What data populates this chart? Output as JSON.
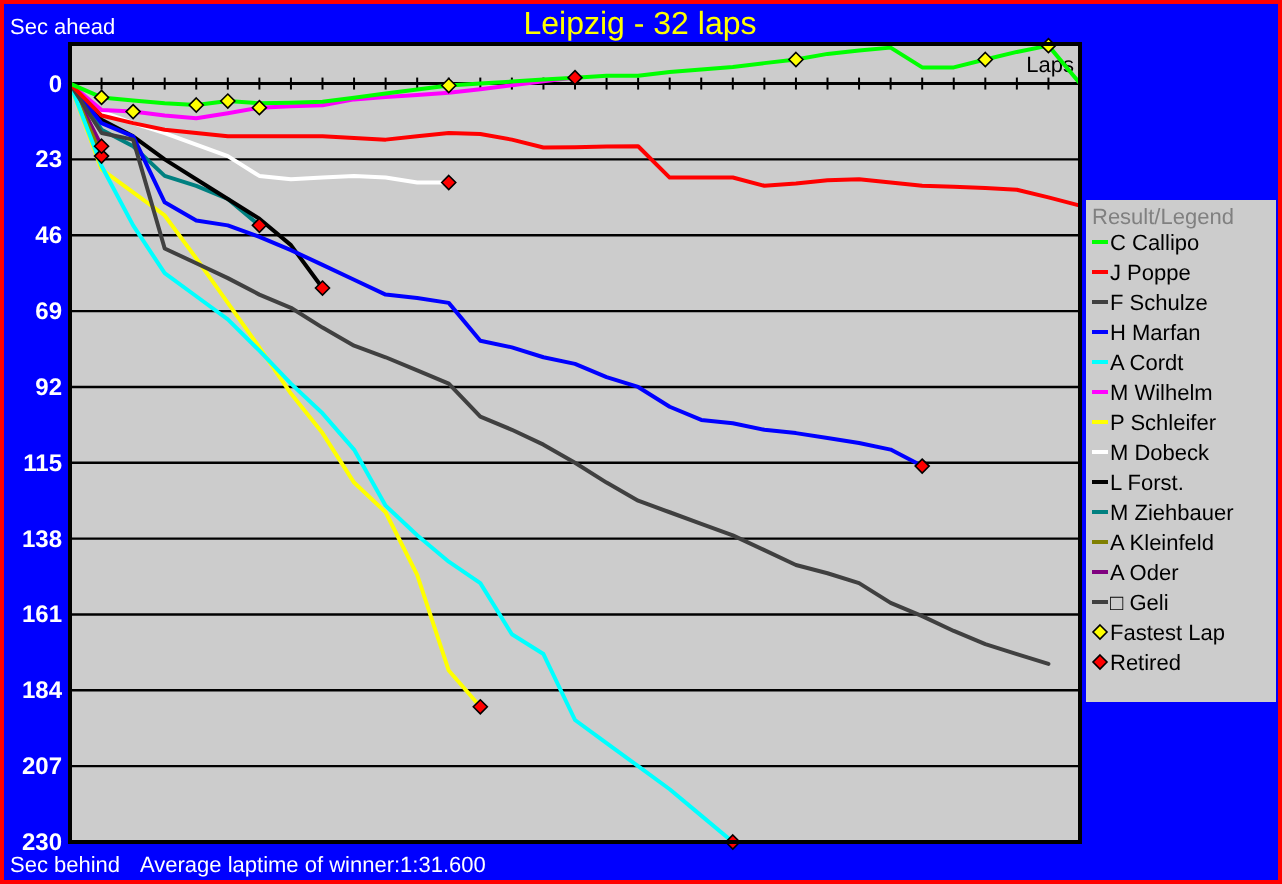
{
  "chart_data": {
    "type": "line",
    "title": "Leipzig - 32 laps",
    "ylabel": "Sec ahead",
    "xlabel": "Laps",
    "legend_title": "Result/Legend",
    "annotations": [
      "Sec behind",
      "Average laptime of winner:1:31.600"
    ],
    "categories": [
      null,
      null,
      null,
      null,
      null,
      null,
      null,
      null,
      null,
      null,
      null,
      null,
      null,
      null,
      null,
      null,
      null,
      null,
      null,
      null,
      null,
      null,
      null,
      null,
      null,
      null,
      null,
      null,
      null,
      null,
      null,
      null,
      null
    ],
    "ylim": [
      230,
      -12
    ],
    "yticks": [
      0,
      23,
      46,
      69,
      92,
      115,
      138,
      161,
      184,
      207,
      230
    ],
    "grid": "y",
    "legend": "right",
    "marker": "none",
    "line_style": "solid",
    "series": [
      {
        "name": "C Callipo",
        "color": "#00ff00",
        "values": [
          0,
          4.2,
          5.1,
          6,
          6.5,
          5.3,
          6,
          5.8,
          5.5,
          4.3,
          3,
          1.8,
          0.6,
          0,
          -0.6,
          -1.2,
          -1.8,
          -2.4,
          -2.4,
          -3.5,
          -4.3,
          -5,
          -6.2,
          -7.3,
          -9,
          -10,
          -10.9,
          -4.9,
          -4.9,
          -7.3,
          -9.6,
          -11.5,
          0
        ]
      },
      {
        "name": "J Poppe",
        "color": "#ff0000",
        "values": [
          0,
          9.7,
          12,
          14,
          15,
          16,
          16,
          16,
          16,
          16.5,
          17,
          16,
          15,
          15.3,
          17,
          19.4,
          19.3,
          19.1,
          19,
          28.5,
          28.5,
          28.5,
          31,
          30.3,
          29.3,
          29,
          30,
          31,
          31.3,
          31.7,
          32.2,
          34.5,
          37
        ]
      },
      {
        "name": "F Schulze",
        "color": "#404040",
        "values": [
          0,
          15,
          17,
          50,
          54.5,
          59,
          64,
          68,
          74,
          79.5,
          83,
          87,
          91,
          101,
          105,
          109.5,
          115,
          121,
          126.5,
          130,
          133.5,
          137,
          141.5,
          146,
          148.5,
          151.5,
          157.5,
          161.5,
          166,
          170,
          173,
          176,
          null
        ]
      },
      {
        "name": "H Marfan",
        "color": "#0000ff",
        "values": [
          0,
          12,
          16,
          36,
          41.5,
          43,
          46.5,
          50.5,
          55,
          59.5,
          64,
          65,
          66.5,
          78,
          80,
          83,
          85,
          89,
          92,
          98,
          102,
          103,
          105,
          106,
          107.5,
          109,
          111,
          116,
          null,
          null,
          null,
          null,
          null
        ]
      },
      {
        "name": "A Cordt",
        "color": "#00ffff",
        "values": [
          0,
          25,
          43,
          57.5,
          64.5,
          71.5,
          81,
          91,
          100,
          111,
          128,
          137,
          145,
          151.5,
          167,
          173,
          193,
          200,
          207,
          214,
          222,
          230,
          null,
          null,
          null,
          null,
          null,
          null,
          null,
          null,
          null,
          null,
          null
        ]
      },
      {
        "name": "M Wilhelm",
        "color": "#ff00ff",
        "values": [
          0,
          8,
          8.5,
          9.7,
          10.5,
          9,
          7.3,
          6.9,
          6.6,
          4.8,
          4.1,
          3.5,
          2.8,
          1.7,
          0.5,
          -0.7,
          -1.8,
          null,
          null,
          null,
          null,
          null,
          null,
          null,
          null,
          null,
          null,
          null,
          null,
          null,
          null,
          null,
          null
        ]
      },
      {
        "name": "P Schleifer",
        "color": "#ffff00",
        "values": [
          0,
          26,
          33,
          40,
          53,
          66.5,
          80,
          94,
          106,
          121,
          130,
          149,
          178,
          189,
          null,
          null,
          null,
          null,
          null,
          null,
          null,
          null,
          null,
          null,
          null,
          null,
          null,
          null,
          null,
          null,
          null,
          null,
          null
        ]
      },
      {
        "name": "M Dobeck",
        "color": "#ffffff",
        "values": [
          0,
          8.5,
          12,
          15,
          18.5,
          22,
          28,
          29,
          28.5,
          28,
          28.5,
          30,
          30,
          null,
          null,
          null,
          null,
          null,
          null,
          null,
          null,
          null,
          null,
          null,
          null,
          null,
          null,
          null,
          null,
          null,
          null,
          null,
          null
        ]
      },
      {
        "name": "L Forst.",
        "color": "#000000",
        "values": [
          0,
          11,
          16,
          23,
          29,
          35,
          41,
          49,
          62,
          null,
          null,
          null,
          null,
          null,
          null,
          null,
          null,
          null,
          null,
          null,
          null,
          null,
          null,
          null,
          null,
          null,
          null,
          null,
          null,
          null,
          null,
          null,
          null
        ]
      },
      {
        "name": "M Ziehbauer",
        "color": "#008080",
        "values": [
          0,
          14,
          19,
          28,
          31,
          35,
          43,
          null,
          null,
          null,
          null,
          null,
          null,
          null,
          null,
          null,
          null,
          null,
          null,
          null,
          null,
          null,
          null,
          null,
          null,
          null,
          null,
          null,
          null,
          null,
          null,
          null,
          null
        ]
      },
      {
        "name": "A Kleinfeld",
        "color": "#808000",
        "values": [
          0,
          22,
          null,
          null,
          null,
          null,
          null,
          null,
          null,
          null,
          null,
          null,
          null,
          null,
          null,
          null,
          null,
          null,
          null,
          null,
          null,
          null,
          null,
          null,
          null,
          null,
          null,
          null,
          null,
          null,
          null,
          null,
          null
        ]
      },
      {
        "name": "A Oder",
        "color": "#800080",
        "values": [
          0,
          19,
          null,
          null,
          null,
          null,
          null,
          null,
          null,
          null,
          null,
          null,
          null,
          null,
          null,
          null,
          null,
          null,
          null,
          null,
          null,
          null,
          null,
          null,
          null,
          null,
          null,
          null,
          null,
          null,
          null,
          null,
          null
        ]
      },
      {
        "name": "□ Geli",
        "color": "#404040",
        "values": [
          null,
          null,
          null,
          null,
          null,
          null,
          null,
          null,
          null,
          null,
          null,
          null,
          null,
          null,
          null,
          null,
          null,
          null,
          null,
          null,
          null,
          null,
          null,
          null,
          null,
          null,
          null,
          null,
          null,
          null,
          null,
          null,
          null
        ]
      },
      {
        "name": "Fastest Lap",
        "type": "scatter",
        "marker": "diamond",
        "color": "#ffff00",
        "values": [
          null,
          4.2,
          8.5,
          null,
          6.5,
          5.3,
          7.3,
          null,
          null,
          null,
          null,
          null,
          0.6,
          null,
          null,
          null,
          null,
          null,
          null,
          null,
          null,
          null,
          null,
          -7.3,
          null,
          null,
          null,
          null,
          null,
          -7.3,
          null,
          -11.5,
          null
        ]
      },
      {
        "name": "Retired",
        "type": "scatter",
        "marker": "diamond",
        "color": "#ff0000",
        "values": [
          null,
          22,
          null,
          null,
          null,
          null,
          43,
          null,
          62,
          null,
          null,
          null,
          30,
          189,
          null,
          null,
          -1.8,
          null,
          null,
          null,
          null,
          230,
          null,
          null,
          null,
          null,
          null,
          116,
          null,
          null,
          null,
          null,
          null
        ]
      },
      {
        "type": "scatter",
        "marker": "diamond",
        "color": "#ff0000",
        "values": [
          null,
          19,
          null,
          null,
          null,
          null,
          null,
          null,
          null,
          null,
          null,
          null,
          null,
          null,
          null,
          null,
          null,
          null,
          null,
          null,
          null,
          null,
          null,
          null,
          null,
          null,
          null,
          null,
          null,
          null,
          null,
          null,
          null
        ]
      }
    ]
  }
}
